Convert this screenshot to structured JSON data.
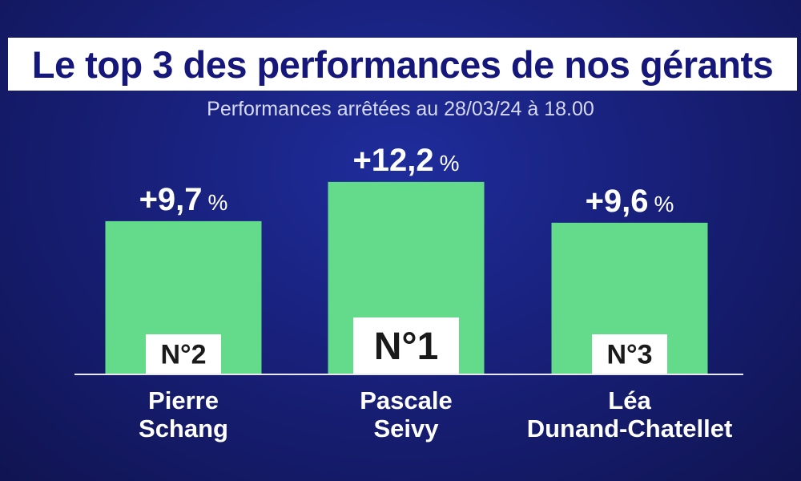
{
  "title": "Le top 3 des performances de nos gérants",
  "subtitle": "Performances arrêtées au 28/03/24 à 18.00",
  "colors": {
    "bar": "#63db8b",
    "background": "#18207a",
    "title_text": "#15187a",
    "baseline": "#e8e8f0"
  },
  "chart_data": {
    "type": "bar",
    "categories": [
      "Pierre Schang",
      "Pascale Seivy",
      "Léa Dunand-Chatellet"
    ],
    "values": [
      9.7,
      12.2,
      9.6
    ],
    "value_labels": [
      "+9,7",
      "+12,2",
      "+9,6"
    ],
    "unit": "%",
    "ranks": [
      "N°2",
      "N°1",
      "N°3"
    ],
    "title": "Le top 3 des performances de nos gérants",
    "subtitle": "Performances arrêtées au 28/03/24 à 18.00"
  },
  "names": [
    {
      "line1": "Pierre",
      "line2": "Schang"
    },
    {
      "line1": "Pascale",
      "line2": "Seivy"
    },
    {
      "line1": "Léa",
      "line2": "Dunand-Chatellet"
    }
  ]
}
